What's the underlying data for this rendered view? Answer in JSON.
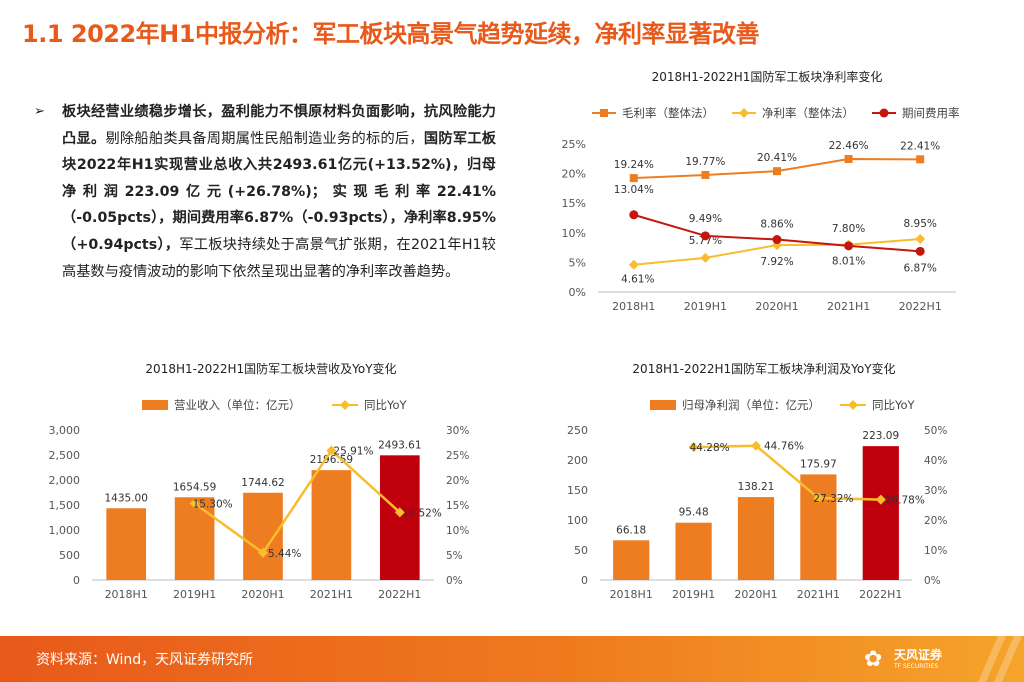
{
  "title": "1.1 2022年H1中报分析：军工板块高景气趋势延续，净利率显著改善",
  "bullet": {
    "marker": "➢",
    "segments": [
      {
        "t": "板块经营业绩稳步增长，盈利能力不惧原材料负面影响，抗风险能力凸显。",
        "b": true
      },
      {
        "t": "剔除船舶类具备周期属性民船制造业务的标的后，",
        "b": false
      },
      {
        "t": "国防军工板块2022年H1实现营业总收入共2493.61亿元(+13.52%)，归母净利润223.09亿元(+26.78%)；实现毛利率22.41%（-0.05pcts），期间费用率6.87%（-0.93pcts），净利率8.95%（+0.94pcts），",
        "b": true
      },
      {
        "t": "军工板块持续处于高景气扩张期，在2021年H1较高基数与疫情波动的影响下依然呈现出显著的净利率改善趋势。",
        "b": false
      }
    ]
  },
  "chart_data": [
    {
      "type": "line",
      "title": "2018H1-2022H1国防军工板块净利率变化",
      "categories": [
        "2018H1",
        "2019H1",
        "2020H1",
        "2021H1",
        "2022H1"
      ],
      "ylim": [
        0,
        25
      ],
      "yticks": [
        "0%",
        "5%",
        "10%",
        "15%",
        "20%",
        "25%"
      ],
      "series": [
        {
          "name": "毛利率（整体法）",
          "color": "#ee7d22",
          "marker": "square",
          "values": [
            19.24,
            19.77,
            20.41,
            22.46,
            22.41
          ],
          "labels": [
            "19.24%",
            "19.77%",
            "20.41%",
            "22.46%",
            "22.41%"
          ]
        },
        {
          "name": "净利率（整体法）",
          "color": "#f8bd2c",
          "marker": "diamond",
          "values": [
            4.61,
            5.77,
            7.92,
            8.01,
            8.95
          ],
          "labels": [
            "4.61%",
            "5.77%",
            "7.92%",
            "8.01%",
            "8.95%"
          ]
        },
        {
          "name": "期间费用率",
          "color": "#c4160d",
          "marker": "circle",
          "values": [
            13.04,
            9.49,
            8.86,
            7.8,
            6.87
          ],
          "labels": [
            "13.04%",
            "9.49%",
            "8.86%",
            "7.80%",
            "6.87%"
          ]
        }
      ]
    },
    {
      "type": "bar",
      "title": "2018H1-2022H1国防军工板块营收及YoY变化",
      "categories": [
        "2018H1",
        "2019H1",
        "2020H1",
        "2021H1",
        "2022H1"
      ],
      "ylim": [
        0,
        3000
      ],
      "yticks": [
        "0",
        "500",
        "1,000",
        "1,500",
        "2,000",
        "2,500",
        "3,000"
      ],
      "y2lim": [
        0,
        30
      ],
      "y2ticks": [
        "0%",
        "5%",
        "10%",
        "15%",
        "20%",
        "25%",
        "30%"
      ],
      "bar_series": {
        "name": "营业收入（单位：亿元）",
        "values": [
          1435.0,
          1654.59,
          1744.62,
          2196.59,
          2493.61
        ],
        "labels": [
          "1435.00",
          "1654.59",
          "1744.62",
          "2196.59",
          "2493.61"
        ]
      },
      "line_series": {
        "name": "同比YoY",
        "values": [
          null,
          15.3,
          5.44,
          25.91,
          13.52
        ],
        "labels": [
          "",
          "15.30%",
          "5.44%",
          "25.91%",
          "13.52%"
        ]
      }
    },
    {
      "type": "bar",
      "title": "2018H1-2022H1国防军工板块净利润及YoY变化",
      "categories": [
        "2018H1",
        "2019H1",
        "2020H1",
        "2021H1",
        "2022H1"
      ],
      "ylim": [
        0,
        250
      ],
      "yticks": [
        "0",
        "50",
        "100",
        "150",
        "200",
        "250"
      ],
      "y2lim": [
        0,
        50
      ],
      "y2ticks": [
        "0%",
        "10%",
        "20%",
        "30%",
        "40%",
        "50%"
      ],
      "bar_series": {
        "name": "归母净利润（单位：亿元）",
        "values": [
          66.18,
          95.48,
          138.21,
          175.97,
          223.09
        ],
        "labels": [
          "66.18",
          "95.48",
          "138.21",
          "175.97",
          "223.09"
        ]
      },
      "line_series": {
        "name": "同比YoY",
        "values": [
          null,
          44.28,
          44.76,
          27.32,
          26.78
        ],
        "labels": [
          "",
          "44.28%",
          "44.76%",
          "27.32%",
          "26.78%"
        ]
      }
    }
  ],
  "colors": {
    "bar": "#ee7d22",
    "bar_highlight": "#c0000c",
    "yoy": "#f8bd2c",
    "accent": "#e8591a"
  },
  "footer": {
    "source": "资料来源：Wind，天风证券研究所",
    "logo_name": "天风证券",
    "logo_sub": "TF SECURITIES"
  }
}
